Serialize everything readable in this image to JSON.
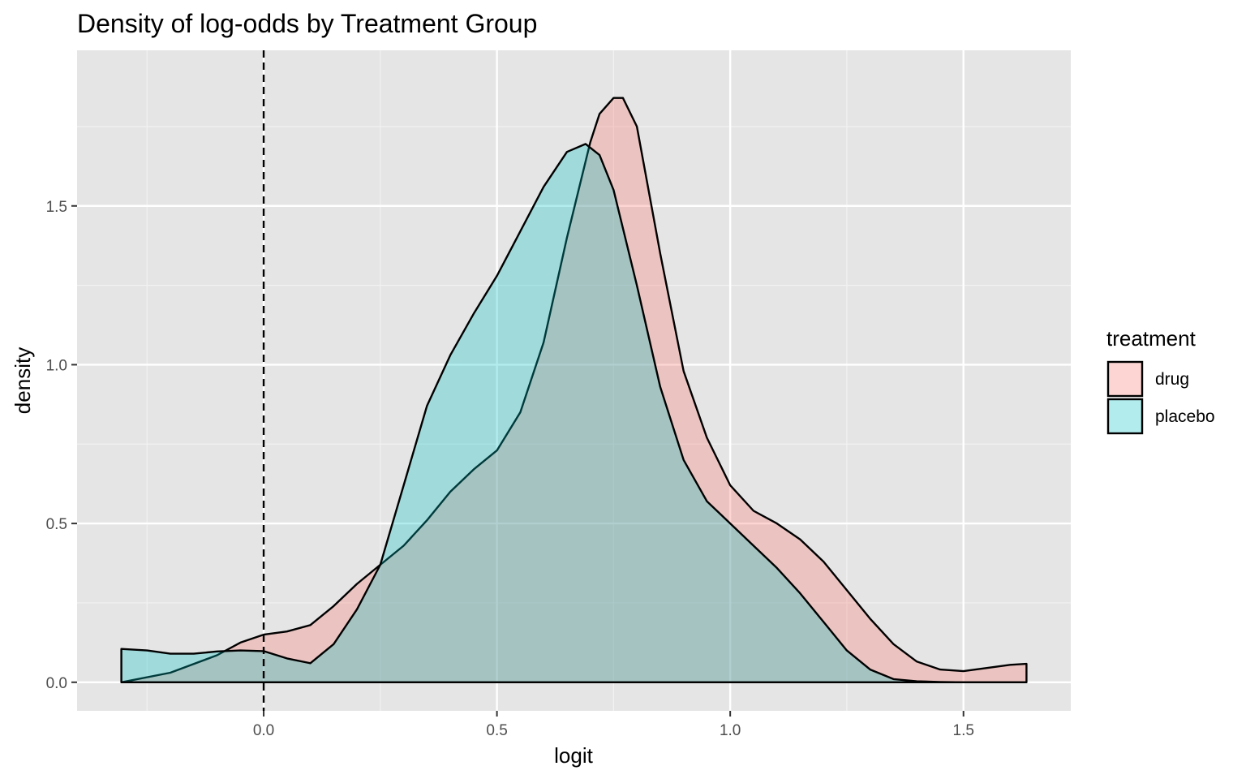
{
  "chart_data": {
    "type": "area",
    "title": "Density of log-odds by Treatment Group",
    "xlabel": "logit",
    "ylabel": "density",
    "xlim": [
      -0.4,
      1.73
    ],
    "ylim": [
      -0.09,
      1.99
    ],
    "xticks": [
      0.0,
      0.5,
      1.0,
      1.5
    ],
    "xtick_labels": [
      "0.0",
      "0.5",
      "1.0",
      "1.5"
    ],
    "yticks": [
      0.0,
      0.5,
      1.0,
      1.5
    ],
    "ytick_labels": [
      "0.0",
      "0.5",
      "1.0",
      "1.5"
    ],
    "grid": true,
    "reference_line": {
      "x": 0.0,
      "style": "dashed"
    },
    "legend": {
      "title": "treatment",
      "position": "right"
    },
    "series": [
      {
        "name": "drug",
        "color": "#F8766D",
        "x": [
          -0.305,
          -0.2,
          -0.1,
          -0.05,
          0.0,
          0.05,
          0.1,
          0.15,
          0.2,
          0.25,
          0.3,
          0.35,
          0.4,
          0.45,
          0.5,
          0.55,
          0.6,
          0.65,
          0.7,
          0.72,
          0.75,
          0.77,
          0.8,
          0.85,
          0.9,
          0.95,
          1.0,
          1.05,
          1.1,
          1.15,
          1.2,
          1.25,
          1.3,
          1.35,
          1.4,
          1.45,
          1.5,
          1.55,
          1.6,
          1.635
        ],
        "y": [
          0.0,
          0.03,
          0.085,
          0.125,
          0.15,
          0.16,
          0.18,
          0.24,
          0.31,
          0.37,
          0.43,
          0.51,
          0.6,
          0.67,
          0.73,
          0.85,
          1.07,
          1.4,
          1.7,
          1.79,
          1.84,
          1.84,
          1.75,
          1.35,
          0.98,
          0.77,
          0.62,
          0.54,
          0.5,
          0.45,
          0.38,
          0.29,
          0.2,
          0.12,
          0.065,
          0.04,
          0.035,
          0.045,
          0.055,
          0.058
        ]
      },
      {
        "name": "placebo",
        "color": "#00BFC4",
        "x": [
          -0.305,
          -0.25,
          -0.2,
          -0.15,
          -0.1,
          -0.05,
          0.0,
          0.05,
          0.1,
          0.15,
          0.2,
          0.25,
          0.3,
          0.35,
          0.4,
          0.45,
          0.5,
          0.55,
          0.6,
          0.65,
          0.69,
          0.72,
          0.75,
          0.8,
          0.85,
          0.9,
          0.95,
          1.0,
          1.05,
          1.1,
          1.15,
          1.2,
          1.25,
          1.3,
          1.35,
          1.4,
          1.45,
          1.5,
          1.55,
          1.6,
          1.635
        ],
        "y": [
          0.105,
          0.1,
          0.09,
          0.09,
          0.097,
          0.1,
          0.098,
          0.075,
          0.06,
          0.12,
          0.23,
          0.37,
          0.62,
          0.87,
          1.03,
          1.16,
          1.28,
          1.42,
          1.56,
          1.67,
          1.695,
          1.66,
          1.55,
          1.25,
          0.93,
          0.7,
          0.57,
          0.5,
          0.43,
          0.36,
          0.28,
          0.19,
          0.1,
          0.04,
          0.01,
          0.003,
          0.001,
          0.0,
          0.0,
          0.0,
          0.0
        ]
      }
    ]
  }
}
